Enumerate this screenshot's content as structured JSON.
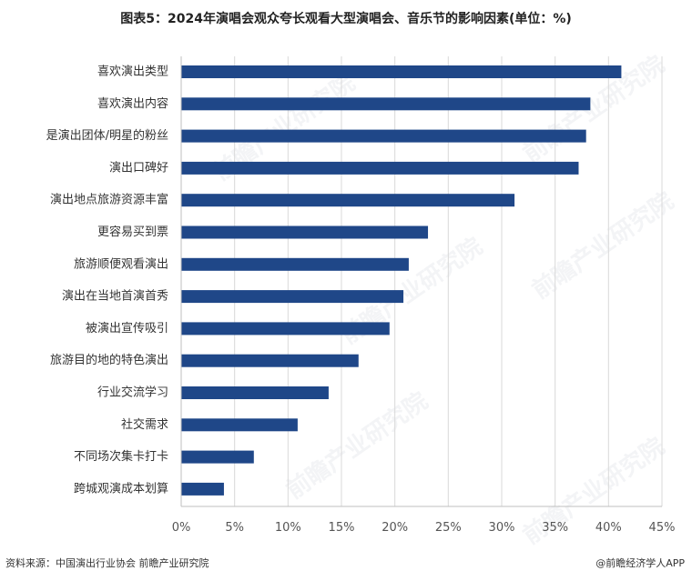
{
  "title": "图表5：2024年演唱会观众夸长观看大型演唱会、音乐节的影响因素(单位：%)",
  "source": "资料来源：中国演出行业协会 前瞻产业研究院",
  "brand": "@前瞻经济学人APP",
  "watermark": "前瞻产业研究院",
  "colors": {
    "bar": "#1f4788",
    "grid": "#d9d9d9",
    "axis": "#bfbfbf"
  },
  "chart_data": {
    "type": "bar",
    "orientation": "horizontal",
    "categories": [
      "喜欢演出类型",
      "喜欢演出内容",
      "是演出团体/明星的粉丝",
      "演出口碑好",
      "演出地点旅游资源丰富",
      "更容易买到票",
      "旅游顺便观看演出",
      "演出在当地首演首秀",
      "被演出宣传吸引",
      "旅游目的地的特色演出",
      "行业交流学习",
      "社交需求",
      "不同场次集卡打卡",
      "跨城观演成本划算"
    ],
    "values": [
      41.2,
      38.3,
      37.9,
      37.2,
      31.2,
      23.1,
      21.3,
      20.8,
      19.5,
      16.6,
      13.8,
      10.9,
      6.8,
      4.0
    ],
    "xlim": [
      0,
      45
    ],
    "xticks": [
      0,
      5,
      10,
      15,
      20,
      25,
      30,
      35,
      40,
      45
    ],
    "xtick_labels": [
      "0%",
      "5%",
      "10%",
      "15%",
      "20%",
      "25%",
      "30%",
      "35%",
      "40%",
      "45%"
    ],
    "grid": true,
    "legend": "none"
  }
}
